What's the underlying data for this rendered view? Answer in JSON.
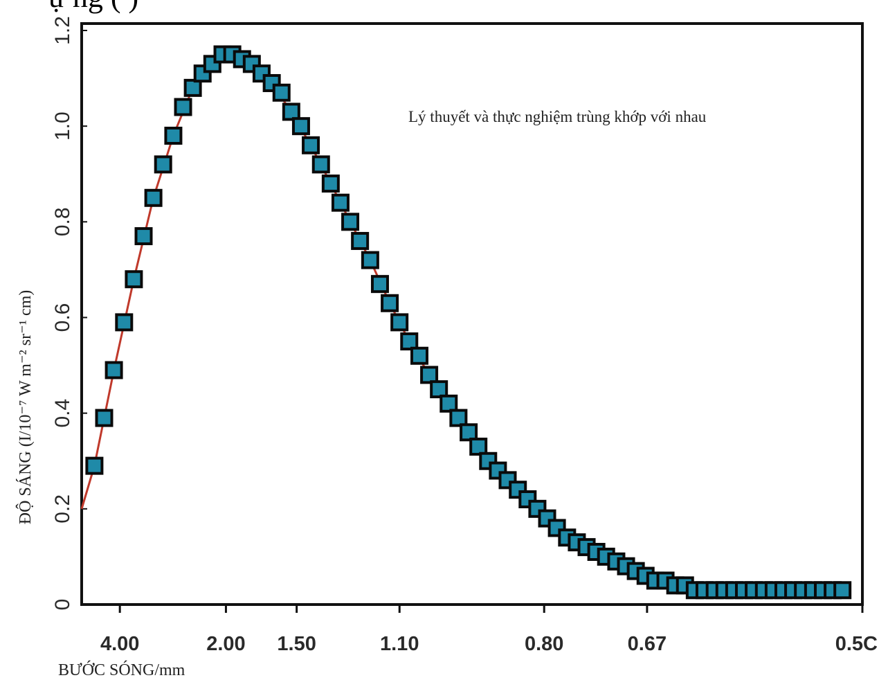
{
  "top_fragment": "ự    ng  (     )",
  "chart_data": {
    "type": "scatter",
    "title": "",
    "xlabel": "BƯỚC SÓNG/mm",
    "ylabel": "ĐỘ SÁNG (I/10⁻⁷ W m⁻² sr⁻¹ cm)",
    "annotation": "Lý thuyết và thực nghiệm trùng khớp với nhau",
    "x_axis_kind": "wavenumber (reciprocal wavelength) scale",
    "x_ticks": [
      {
        "label": "4.00",
        "wavenumber": 2.5
      },
      {
        "label": "2.00",
        "wavenumber": 5
      },
      {
        "label": "1.50",
        "wavenumber": 6.667
      },
      {
        "label": "1.10",
        "wavenumber": 9.091
      },
      {
        "label": "0.80",
        "wavenumber": 12.5
      },
      {
        "label": "0.67",
        "wavenumber": 14.925
      },
      {
        "label": "0.5C",
        "wavenumber": 20
      }
    ],
    "y_ticks": [
      "0",
      "0.2",
      "0.4",
      "0.6",
      "0.8",
      "1.0",
      "1.2"
    ],
    "xlim_wavenumber": [
      1.6,
      20
    ],
    "ylim": [
      0,
      1.2
    ],
    "grid": false,
    "series": [
      {
        "kind": "markers",
        "color": "#1f8aa8",
        "x": [
          1.9,
          2.13,
          2.36,
          2.6,
          2.83,
          3.06,
          3.29,
          3.52,
          3.76,
          3.99,
          4.22,
          4.45,
          4.68,
          4.92,
          5.15,
          5.38,
          5.61,
          5.84,
          6.08,
          6.31,
          6.54,
          6.77,
          7.0,
          7.24,
          7.47,
          7.7,
          7.93,
          8.16,
          8.4,
          8.63,
          8.86,
          9.09,
          9.32,
          9.56,
          9.79,
          10.02,
          10.25,
          10.48,
          10.72,
          10.95,
          11.18,
          11.41,
          11.64,
          11.88,
          12.11,
          12.34,
          12.57,
          12.8,
          13.04,
          13.27,
          13.5,
          13.73,
          13.96,
          14.2,
          14.43,
          14.66,
          14.89,
          15.12,
          15.36,
          15.59,
          15.82,
          16.05,
          16.28,
          16.52,
          16.75,
          16.98,
          17.21,
          17.44,
          17.68,
          17.91,
          18.14,
          18.37,
          18.6,
          18.84,
          19.07,
          19.3,
          19.53
        ],
        "y": [
          0.29,
          0.39,
          0.49,
          0.59,
          0.68,
          0.77,
          0.85,
          0.92,
          0.98,
          1.04,
          1.08,
          1.11,
          1.13,
          1.15,
          1.15,
          1.14,
          1.13,
          1.11,
          1.09,
          1.07,
          1.03,
          1.0,
          0.96,
          0.92,
          0.88,
          0.84,
          0.8,
          0.76,
          0.72,
          0.67,
          0.63,
          0.59,
          0.55,
          0.52,
          0.48,
          0.45,
          0.42,
          0.39,
          0.36,
          0.33,
          0.3,
          0.28,
          0.26,
          0.24,
          0.22,
          0.2,
          0.18,
          0.16,
          0.14,
          0.13,
          0.12,
          0.11,
          0.1,
          0.09,
          0.08,
          0.07,
          0.06,
          0.05,
          0.05,
          0.04,
          0.04,
          0.03,
          0.03,
          0.03,
          0.03,
          0.03,
          0.03,
          0.03,
          0.03,
          0.03,
          0.03,
          0.03,
          0.03,
          0.03,
          0.03,
          0.03,
          0.03
        ]
      },
      {
        "kind": "line",
        "color": "#c0392b",
        "x": [
          1.6,
          1.9,
          2.36,
          2.83,
          3.29,
          3.76,
          4.22,
          4.68,
          5.15,
          5.61,
          6.08,
          6.54,
          7.0,
          7.47,
          7.93,
          8.4,
          8.86,
          9.32,
          9.79,
          10.25,
          10.72,
          11.18,
          11.64,
          12.11,
          12.57,
          13.04,
          13.5,
          13.96,
          14.43,
          14.89,
          15.36,
          15.82,
          16.28,
          16.75,
          17.21,
          17.68,
          18.14,
          18.6,
          19.07,
          19.53
        ],
        "y": [
          0.2,
          0.29,
          0.49,
          0.68,
          0.85,
          0.98,
          1.08,
          1.13,
          1.15,
          1.13,
          1.09,
          1.03,
          0.96,
          0.88,
          0.8,
          0.72,
          0.63,
          0.55,
          0.48,
          0.42,
          0.36,
          0.3,
          0.26,
          0.22,
          0.18,
          0.14,
          0.12,
          0.1,
          0.08,
          0.06,
          0.05,
          0.04,
          0.035,
          0.03,
          0.03,
          0.03,
          0.03,
          0.03,
          0.03,
          0.03
        ]
      }
    ]
  }
}
